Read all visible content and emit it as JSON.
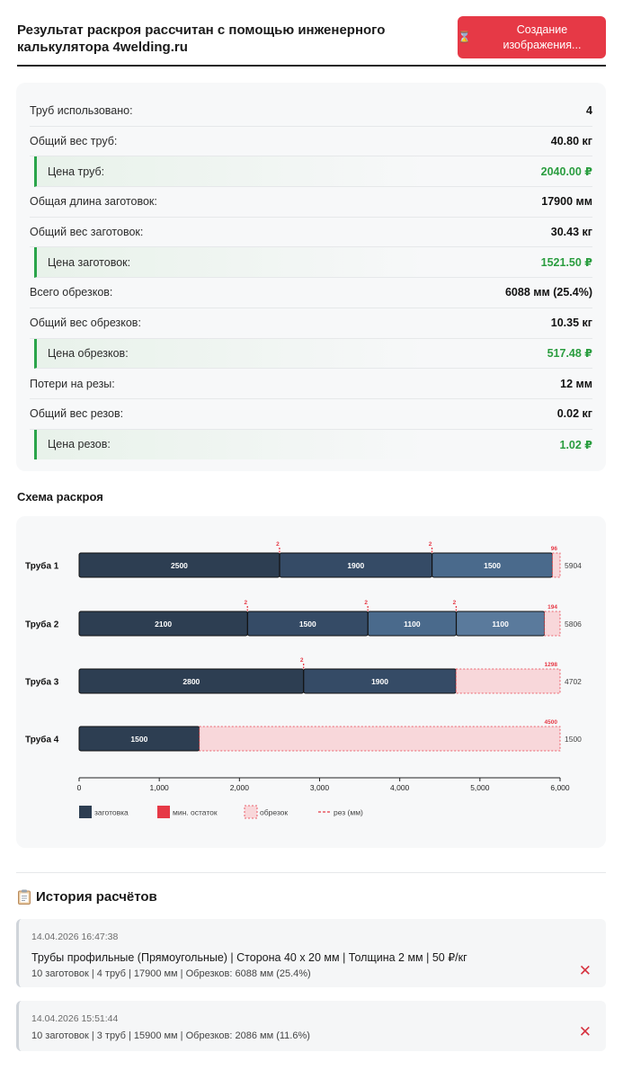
{
  "header": {
    "title": "Результат раскроя рассчитан с помощью инженерного калькулятора 4welding.ru",
    "button_label": "Создание изображения...",
    "button_icon": "hourglass-icon",
    "accent_color": "#e63946"
  },
  "summary": [
    {
      "label": "Труб использовано:",
      "value": "4",
      "price": false
    },
    {
      "label": "Общий вес труб:",
      "value": "40.80 кг",
      "price": false
    },
    {
      "label": "Цена труб:",
      "value": "2040.00 ₽",
      "price": true
    },
    {
      "label": "Общая длина заготовок:",
      "value": "17900 мм",
      "price": false
    },
    {
      "label": "Общий вес заготовок:",
      "value": "30.43 кг",
      "price": false
    },
    {
      "label": "Цена заготовок:",
      "value": "1521.50 ₽",
      "price": true
    },
    {
      "label": "Всего обрезков:",
      "value": "6088 мм (25.4%)",
      "price": false
    },
    {
      "label": "Общий вес обрезков:",
      "value": "10.35 кг",
      "price": false
    },
    {
      "label": "Цена обрезков:",
      "value": "517.48 ₽",
      "price": true
    },
    {
      "label": "Потери на резы:",
      "value": "12 мм",
      "price": false
    },
    {
      "label": "Общий вес резов:",
      "value": "0.02 кг",
      "price": false
    },
    {
      "label": "Цена резов:",
      "value": "1.02 ₽",
      "price": true
    }
  ],
  "scheme": {
    "title": "Схема раскроя"
  },
  "chart_data": {
    "type": "bar",
    "orientation": "horizontal-stacked",
    "x_range": [
      0,
      6000
    ],
    "x_ticks": [
      0,
      1000,
      2000,
      3000,
      4000,
      5000,
      6000
    ],
    "x_tick_labels": [
      "0",
      "1,000",
      "2,000",
      "3,000",
      "4,000",
      "5,000",
      "6,000"
    ],
    "pipe_length": 6000,
    "kerf": 2,
    "pipes": [
      {
        "label": "Труба 1",
        "pieces": [
          2500,
          1900,
          1500
        ],
        "cuts": [
          2,
          2
        ],
        "waste": 96,
        "used": "5904"
      },
      {
        "label": "Труба 2",
        "pieces": [
          2100,
          1500,
          1100,
          1100
        ],
        "cuts": [
          2,
          2,
          2
        ],
        "waste": 194,
        "used": "5806"
      },
      {
        "label": "Труба 3",
        "pieces": [
          2800,
          1900
        ],
        "cuts": [
          2
        ],
        "waste": 1298,
        "used": "4702"
      },
      {
        "label": "Труба 4",
        "pieces": [
          1500
        ],
        "cuts": [],
        "waste": 4500,
        "used": "1500"
      }
    ],
    "piece_colors": [
      "#2d3e52",
      "#354b66",
      "#4a6a8c",
      "#5a7a9c"
    ],
    "waste_color": "#f8d7da",
    "cut_color": "#e63946",
    "legend": [
      {
        "label": "заготовка",
        "kind": "piece",
        "color": "#2d3e52"
      },
      {
        "label": "мин. остаток",
        "kind": "min",
        "color": "#e63946"
      },
      {
        "label": "обрезок",
        "kind": "waste",
        "color": "#f8d7da"
      },
      {
        "label": "рез (мм)",
        "kind": "cut",
        "color": "#e63946"
      }
    ]
  },
  "history": {
    "title": "История расчётов",
    "icon": "clipboard-icon",
    "items": [
      {
        "date": "14.04.2026 16:47:38",
        "main": "Трубы профильные (Прямоугольные) | Сторона 40 x 20 мм | Толщина 2 мм | 50 ₽/кг",
        "sub": "10 заготовок | 4 труб | 17900 мм | Обрезков: 6088 мм (25.4%)",
        "delete_icon": "close-icon"
      },
      {
        "date": "14.04.2026 15:51:44",
        "main": "",
        "sub": "10 заготовок | 3 труб | 15900 мм | Обрезков: 2086 мм (11.6%)",
        "delete_icon": "close-icon"
      }
    ]
  }
}
